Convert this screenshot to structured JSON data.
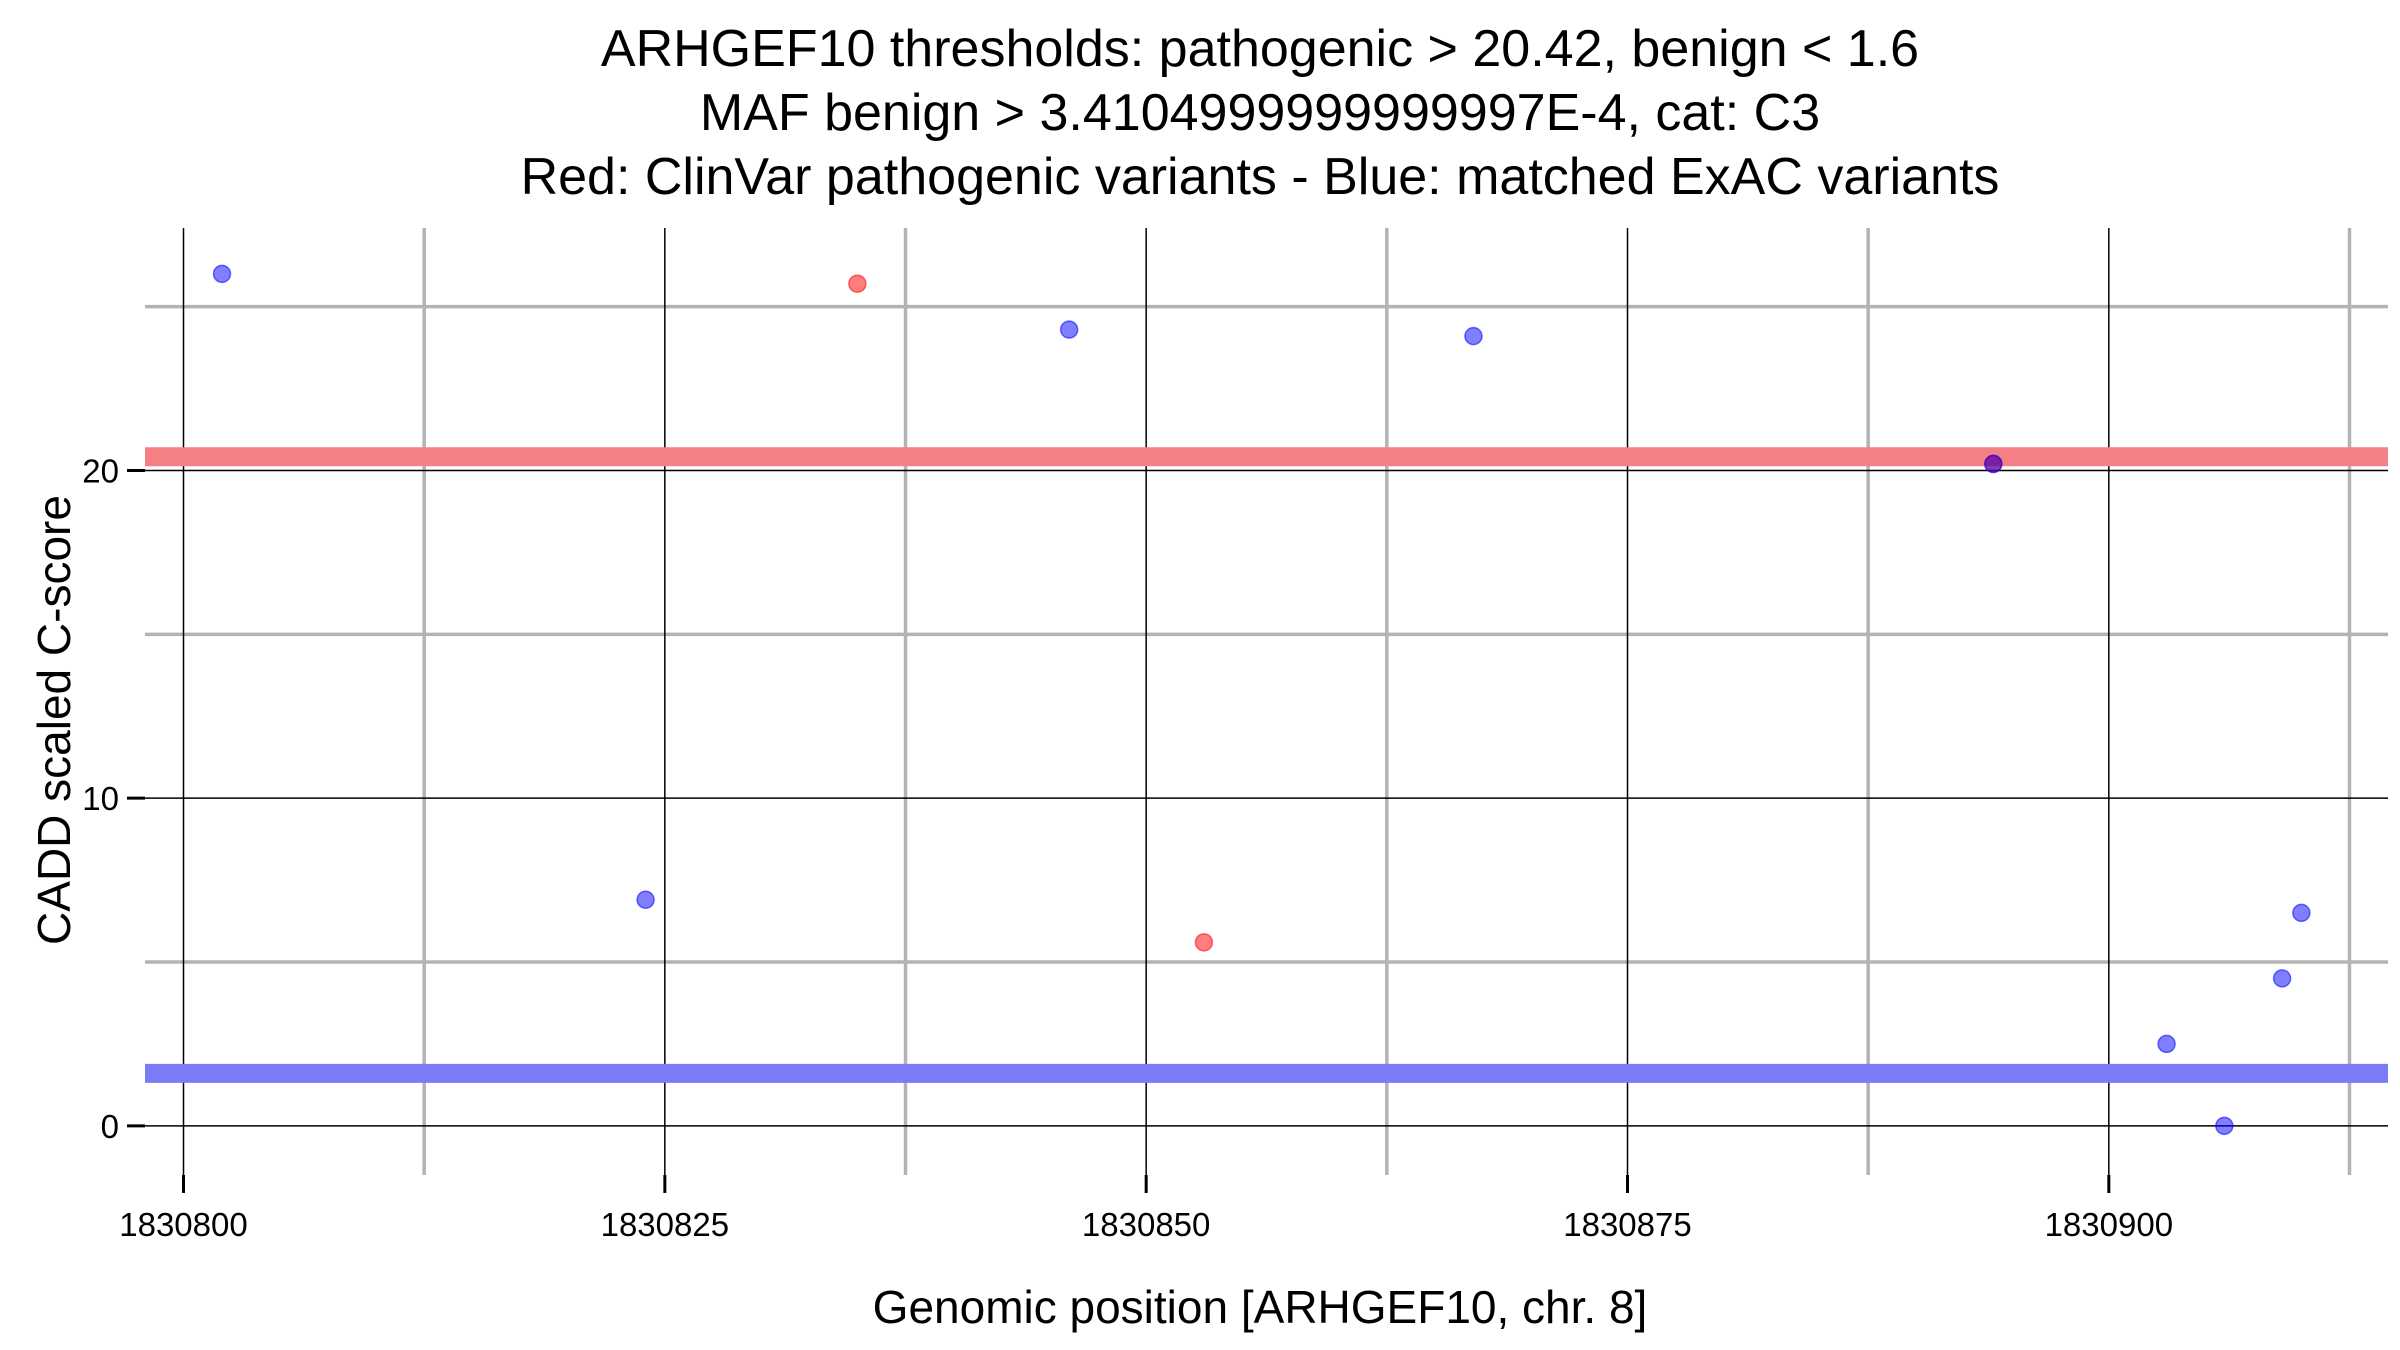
{
  "chart_data": {
    "type": "scatter",
    "title_lines": [
      "ARHGEF10 thresholds: pathogenic > 20.42, benign < 1.6",
      "MAF benign > 3.4104999999999997E-4, cat: C3",
      "Red: ClinVar pathogenic variants - Blue: matched ExAC variants"
    ],
    "xlabel": "Genomic position [ARHGEF10, chr. 8]",
    "ylabel": "CADD scaled C-score",
    "xlim": [
      1830798,
      1830914.5
    ],
    "ylim": [
      -1.5,
      27.4
    ],
    "x_ticks": [
      1830800,
      1830825,
      1830850,
      1830875,
      1830900
    ],
    "x_tick_labels": [
      "1830800",
      "1830825",
      "1830850",
      "1830875",
      "1830900"
    ],
    "x_minor_gridlines": [
      1830812.5,
      1830837.5,
      1830862.5,
      1830887.5,
      1830912.5
    ],
    "y_ticks": [
      0,
      10,
      20
    ],
    "y_tick_labels": [
      "0",
      "10",
      "20"
    ],
    "y_minor_gridlines": [
      5,
      15,
      25
    ],
    "grid": true,
    "thresholds": {
      "pathogenic": {
        "value": 20.42,
        "color": "#f47f84"
      },
      "benign": {
        "value": 1.6,
        "color": "#7b7bf5"
      }
    },
    "series": [
      {
        "color": "#ff0000",
        "points": [
          {
            "x": 1830835,
            "y": 25.7
          },
          {
            "x": 1830853,
            "y": 5.6
          },
          {
            "x": 1830894,
            "y": 20.2
          }
        ]
      },
      {
        "color": "#0000ff",
        "points": [
          {
            "x": 1830802,
            "y": 26.0
          },
          {
            "x": 1830824,
            "y": 6.9
          },
          {
            "x": 1830846,
            "y": 24.3
          },
          {
            "x": 1830867,
            "y": 24.1
          },
          {
            "x": 1830894,
            "y": 20.2
          },
          {
            "x": 1830903,
            "y": 2.5
          },
          {
            "x": 1830906,
            "y": 0.0
          },
          {
            "x": 1830909,
            "y": 4.5
          },
          {
            "x": 1830910,
            "y": 6.5
          }
        ]
      }
    ]
  }
}
